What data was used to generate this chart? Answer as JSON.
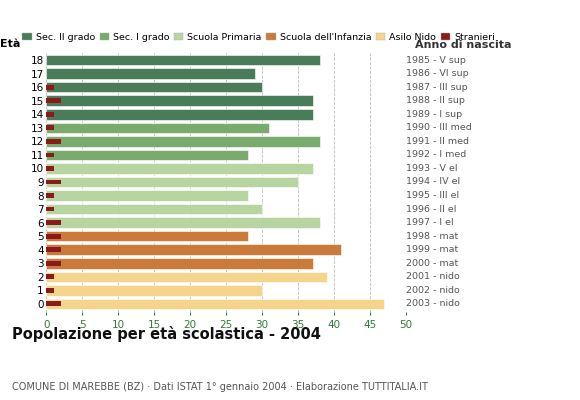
{
  "ages": [
    18,
    17,
    16,
    15,
    14,
    13,
    12,
    11,
    10,
    9,
    8,
    7,
    6,
    5,
    4,
    3,
    2,
    1,
    0
  ],
  "years": [
    "1985 - V sup",
    "1986 - VI sup",
    "1987 - III sup",
    "1988 - II sup",
    "1989 - I sup",
    "1990 - III med",
    "1991 - II med",
    "1992 - I med",
    "1993 - V el",
    "1994 - IV el",
    "1995 - III el",
    "1996 - II el",
    "1997 - I el",
    "1998 - mat",
    "1999 - mat",
    "2000 - mat",
    "2001 - nido",
    "2002 - nido",
    "2003 - nido"
  ],
  "bar_values": [
    38,
    29,
    30,
    37,
    37,
    31,
    38,
    28,
    37,
    35,
    28,
    30,
    38,
    28,
    41,
    37,
    39,
    30,
    47
  ],
  "stranieri": [
    0,
    0,
    1,
    2,
    1,
    1,
    2,
    1,
    1,
    2,
    1,
    1,
    2,
    2,
    2,
    2,
    1,
    1,
    2
  ],
  "bar_colors": [
    "#4a7c59",
    "#4a7c59",
    "#4a7c59",
    "#4a7c59",
    "#4a7c59",
    "#7aab6e",
    "#7aab6e",
    "#7aab6e",
    "#b8d4a0",
    "#b8d4a0",
    "#b8d4a0",
    "#b8d4a0",
    "#b8d4a0",
    "#cc7a3a",
    "#cc7a3a",
    "#cc7a3a",
    "#f5d48c",
    "#f5d48c",
    "#f5d48c"
  ],
  "stranieri_color": "#8b1a1a",
  "legend_labels": [
    "Sec. II grado",
    "Sec. I grado",
    "Scuola Primaria",
    "Scuola dell'Infanzia",
    "Asilo Nido",
    "Stranieri"
  ],
  "legend_colors": [
    "#4a7c59",
    "#7aab6e",
    "#b8d4a0",
    "#cc7a3a",
    "#f5d48c",
    "#8b1a1a"
  ],
  "title": "Popolazione per età scolastica - 2004",
  "subtitle": "COMUNE DI MAREBBE (BZ) · Dati ISTAT 1° gennaio 2004 · Elaborazione TUTTITALIA.IT",
  "label_left": "Età",
  "label_right": "Anno di nascita",
  "xlim": [
    0,
    50
  ],
  "xticks": [
    0,
    5,
    10,
    15,
    20,
    25,
    30,
    35,
    40,
    45,
    50
  ],
  "background_color": "#ffffff",
  "grid_color": "#bbbbbb"
}
